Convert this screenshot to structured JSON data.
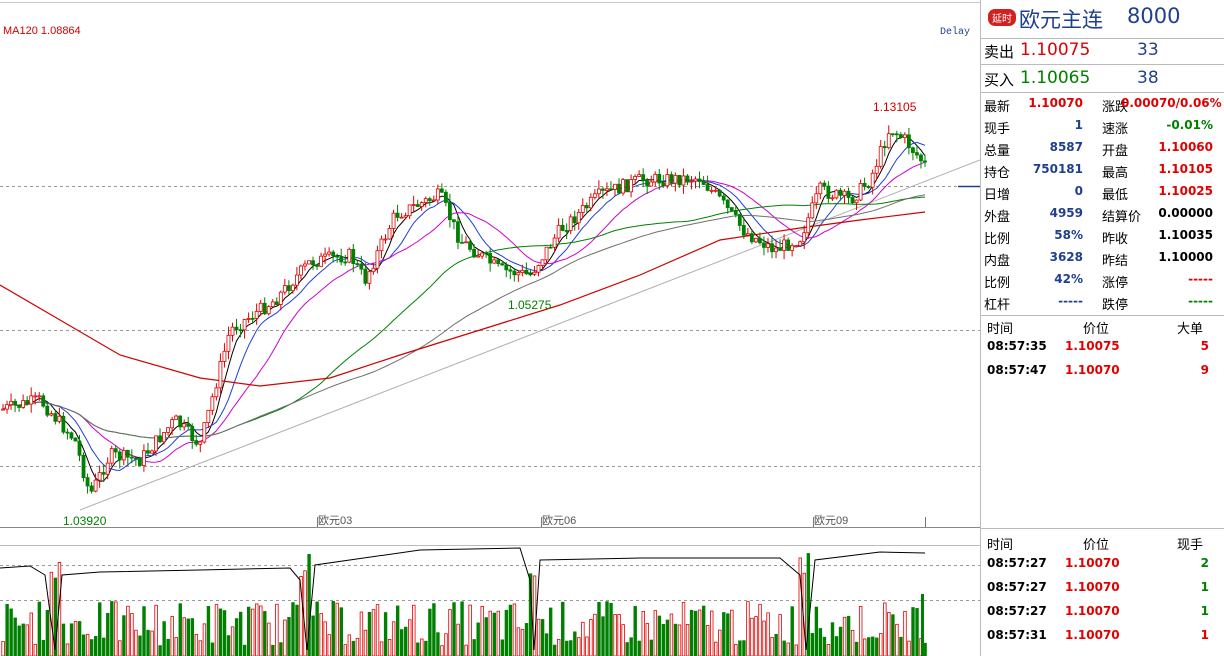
{
  "chart_data": {
    "type": "candlestick",
    "ma_label": "MA120 1.08864",
    "delay_label": "Delay",
    "x_ticks": [
      "欧元03",
      "欧元06",
      "欧元09"
    ],
    "annotations": {
      "high": "1.13105",
      "mid_low": "1.05275",
      "start_low": "1.03920"
    },
    "colors": {
      "up": "#e00000",
      "down": "#008000",
      "ma5": "#000000",
      "ma10": "#1f3fd8",
      "ma20": "#d000d0",
      "ma60": "#008000",
      "ma90": "#707070",
      "ma120": "#d00000"
    }
  },
  "panel": {
    "tag": "延时",
    "name": "欧元主连",
    "code": "8000",
    "ask_label": "卖出",
    "ask_price": "1.10075",
    "ask_vol": "33",
    "bid_label": "买入",
    "bid_price": "1.10065",
    "bid_vol": "38",
    "stats": [
      {
        "l1": "最新",
        "v1": "1.10070",
        "c1": "red",
        "l2": "涨跌",
        "v2": "0.00070/0.06%",
        "c2": "red"
      },
      {
        "l1": "现手",
        "v1": "1",
        "c1": "blue",
        "l2": "速涨",
        "v2": "-0.01%",
        "c2": "green"
      },
      {
        "l1": "总量",
        "v1": "8587",
        "c1": "blue",
        "l2": "开盘",
        "v2": "1.10060",
        "c2": "red"
      },
      {
        "l1": "持仓",
        "v1": "750181",
        "c1": "blue",
        "l2": "最高",
        "v2": "1.10105",
        "c2": "red"
      },
      {
        "l1": "日增",
        "v1": "0",
        "c1": "blue",
        "l2": "最低",
        "v2": "1.10025",
        "c2": "red"
      },
      {
        "l1": "外盘",
        "v1": "4959",
        "c1": "blue",
        "l2": "结算价",
        "v2": "0.00000",
        "c2": "blk"
      },
      {
        "l1": "比例",
        "v1": "58%",
        "c1": "blue",
        "l2": "昨收",
        "v2": "1.10035",
        "c2": "blk"
      },
      {
        "l1": "内盘",
        "v1": "3628",
        "c1": "blue",
        "l2": "昨结",
        "v2": "1.10000",
        "c2": "blk"
      },
      {
        "l1": "比例",
        "v1": "42%",
        "c1": "blue",
        "l2": "涨停",
        "v2": "-----",
        "c2": "red"
      },
      {
        "l1": "杠杆",
        "v1": "-----",
        "c1": "blue",
        "l2": "跌停",
        "v2": "-----",
        "c2": "green"
      }
    ],
    "ticks1_header": {
      "time": "时间",
      "price": "价位",
      "vol": "大单"
    },
    "ticks1": [
      {
        "time": "08:57:35",
        "price": "1.10075",
        "vol": "5"
      },
      {
        "time": "08:57:47",
        "price": "1.10070",
        "vol": "9"
      }
    ],
    "ticks2_header": {
      "time": "时间",
      "price": "价位",
      "vol": "现手"
    },
    "ticks2": [
      {
        "time": "08:57:27",
        "price": "1.10070",
        "vol": "2",
        "vc": "green"
      },
      {
        "time": "08:57:27",
        "price": "1.10070",
        "vol": "1",
        "vc": "green"
      },
      {
        "time": "08:57:27",
        "price": "1.10070",
        "vol": "1",
        "vc": "green"
      },
      {
        "time": "08:57:31",
        "price": "1.10070",
        "vol": "1",
        "vc": "red"
      }
    ]
  }
}
